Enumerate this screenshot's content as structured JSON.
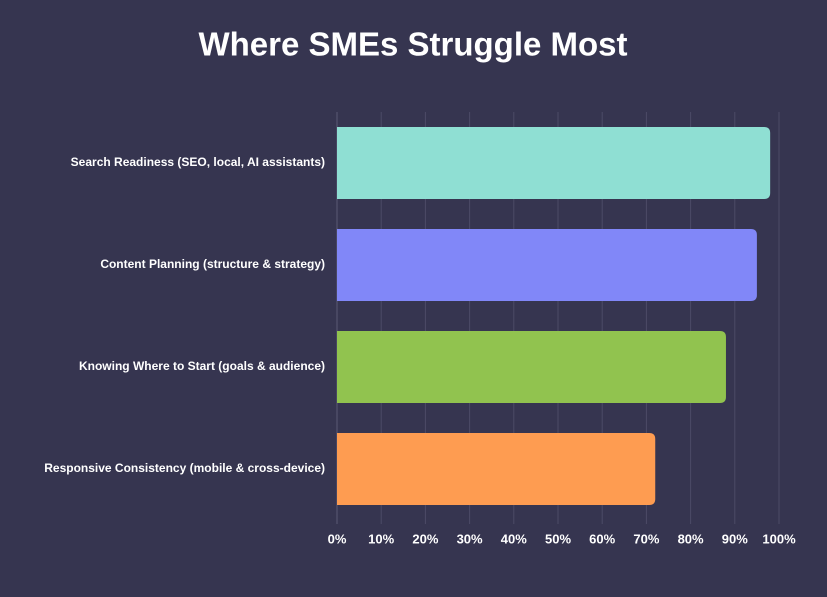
{
  "chart_data": {
    "type": "hbar",
    "title": "Where SMEs Struggle Most",
    "categories": [
      "Search Readiness (SEO, local, AI assistants)",
      "Content Planning (structure & strategy)",
      "Knowing Where to Start (goals & audience)",
      "Responsive Consistency (mobile & cross-device)"
    ],
    "values": [
      98,
      95,
      88,
      72
    ],
    "colors": [
      "#8fdfd3",
      "#8187f8",
      "#91c34f",
      "#fe9c51"
    ],
    "xlim": [
      0,
      100
    ],
    "xticks": [
      {
        "value": 0,
        "label": "0%"
      },
      {
        "value": 10,
        "label": "10%"
      },
      {
        "value": 20,
        "label": "20%"
      },
      {
        "value": 30,
        "label": "30%"
      },
      {
        "value": 40,
        "label": "40%"
      },
      {
        "value": 50,
        "label": "50%"
      },
      {
        "value": 60,
        "label": "60%"
      },
      {
        "value": 70,
        "label": "70%"
      },
      {
        "value": 80,
        "label": "80%"
      },
      {
        "value": 90,
        "label": "90%"
      },
      {
        "value": 100,
        "label": "100%"
      }
    ],
    "grid": true
  }
}
